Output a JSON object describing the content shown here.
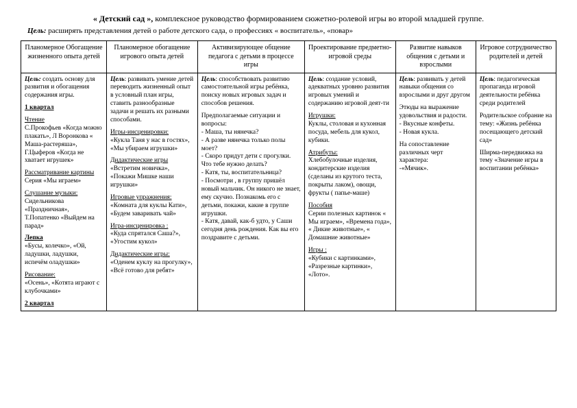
{
  "heading": {
    "title_bold": "« Детский сад »,",
    "title_rest": "комплексное руководство формированием сюжетно-ролевой игры во второй младшей группе."
  },
  "goal": {
    "label": "Цель:",
    "text": "расширять представления детей о работе детского сада, о профессиях « воспитатель», «повар»"
  },
  "headers": [
    "Планомерное Обогащение жизненного опыта детей",
    "Планомерное обогащение игрового опыта детей",
    "Активизирующее общение педагога с детьми в процессе игры",
    "Проектирование предметно-игровой среды",
    "Развитие навыков общения с детьми и взрослыми",
    "Игровое сотрудничество родителей и детей"
  ],
  "cells": {
    "c1": {
      "p1": "<b><i>Цель:</i></b> создать основу для развития и обогащения содержания игры.",
      "p2": "<b><u>1 квартал</u></b>",
      "p3": "<u>Чтение</u><br>С.Прокофьев «Когда можно плакать», Л Воронкова « Маша-растеряша», Г.Цыферов «Когда не хватает игрушек»",
      "p4": "<u>Рассматривание картины</u><br>Серия «Мы играем»",
      "p5": "<u>Слушание музыки:</u><br>Сидельникова «Праздничная», Т.Попатенко «Выйдем на парад»",
      "p6": "<b><u>Лепка</u></b><br>«Бусы, колечко», «Ой, ладушки, ладушки, испечём оладушки»",
      "p7": "<u>Рисование:</u><br>«Осень», «Котята играют с клубочками»",
      "p8": "<b><u>2 квартал</u></b>"
    },
    "c2": {
      "p1": "<b><i>Цель</i></b>: развивать умение детей переводить жизненный опыт в условный план игры, ставить разнообразные задачи и решать их разными способами.",
      "p2": "<u>Игры-инсценировки:</u><br>«Кукла Таня у нас в гостях», «Мы убираем игрушки»",
      "p3": "<u>Дидактические игры</u><br>«Встретим новичка», «Покажи Мишке наши игрушки»",
      "p4": "<u>Игровые упражнения:</u><br>«Комната для куклы Кати», «Будем заваривать чай»",
      "p5": "<u>Игра-инсценировка :</u><br>«Куда спрятался Саша?», «Угостим кукол»",
      "p6": "<u>Дидактические игры:</u><br>«Оденем куклу на прогулку», «Всё готово для ребят»"
    },
    "c3": {
      "p1": "<b><i>Цель</i></b>: способствовать развитию самостоятельной игры ребёнка, поиску новых игровых задач и способов решения.",
      "p2": "Предполагаемые ситуации и вопросы:<br>- Маша, ты нянечка?<br>- А разве нянечка только полы моет?<br>- Скоро придут дети с прогулки. Что тебе нужно делать?<br>- Катя, ты, воспитательница?<br>- Посмотри , в группу пришёл новый мальчик. Он никого не знает, ему скучно. Познакомь его с детьми, покажи, какие в группе игрушки.<br>- Катя, давай, как-б удто,  у Саши сегодня день рождения. Как вы его поздравите с детьми."
    },
    "c4": {
      "p1": "<b><i>Цель</i></b>: создание условий, адекватных уровню развития игровых умений и содержанию игровой деят-ти",
      "p2": "<u>Игрушки:</u><br>Куклы, столовая и кухонная посуда, мебель для кукол, кубики.",
      "p3": "<u>Атрибуты:</u><br>Хлебобулочные изделия, кондитерские изделия (сделаны из крутого теста, покрыты лаком), овощи, фрукты ( папье-маше)",
      "p4": "<u>Пособия</u><br>Серии полезных картинок « Мы играем», «Времена года», « Дикие животные», « Домашние животные»",
      "p5": "<u>Игры :</u><br>«Кубики с картинками», «Разрезные картинки», «Лото»."
    },
    "c5": {
      "p1": "<b><i>Цель</i></b>: развивать у детей навыки общения со взрослыми и друг другом",
      "p2": "Этюды на выражение удовольствия и радости.<br>- Вкусные конфеты.<br>- Новая кукла.",
      "p3": "На сопоставление различных черт характера:<br>-«Мячик»."
    },
    "c6": {
      "p1": "<b><i>Цель</i></b>: педагогическая пропаганда игровой деятельности ребёнка среди родителей",
      "p2": "Родительское собрание на тему: «Жизнь ребёнка посещающего детский сад»",
      "p3": "Ширма-передвижка на тему «Значение игры в воспитании ребёнка»"
    }
  }
}
